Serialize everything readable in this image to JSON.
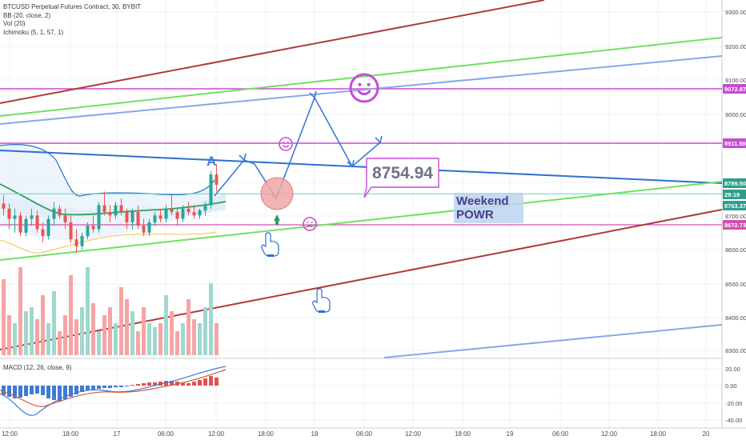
{
  "legend": {
    "title": "BTCUSD Perpetual Futures Contract, 30, BYBIT",
    "bb": "BB (20, close, 2)",
    "vol": "Vol (20)",
    "ichimoku": "Ichimoku (5, 1, 57, 1)",
    "macd": "MACD (12, 26, close, 9)"
  },
  "price_axis": {
    "ticks": [
      "9300.00",
      "9200.00",
      "9100.00",
      "9000.00",
      "8700.00",
      "8600.00",
      "8500.00",
      "8400.00",
      "8300.00"
    ],
    "tags": [
      {
        "label": "9072.87",
        "color": "#c74bd6"
      },
      {
        "label": "8911.59",
        "color": "#c74bd6"
      },
      {
        "label": "8789.50",
        "color": "#2e9e8a"
      },
      {
        "label": "29:19",
        "color": "#2e9e8a"
      },
      {
        "label": "8763.37",
        "color": "#2e9e8a"
      },
      {
        "label": "8672.73",
        "color": "#d24fb0"
      }
    ]
  },
  "macd_axis": {
    "ticks": [
      "20.00",
      "0.00",
      "-20.00",
      "-40.00"
    ]
  },
  "time_axis": {
    "labels": [
      "12:00",
      "18:00",
      "17",
      "06:00",
      "12:00",
      "18:00",
      "18",
      "06:00",
      "12:00",
      "18:00",
      "19",
      "06:00",
      "12:00",
      "18:00",
      "20"
    ]
  },
  "annotations": {
    "price_callout": "8754.94",
    "letter_a": "A",
    "weekend_line1": "Weekend",
    "weekend_line2": "POWR",
    "smile_icon": "smiley-face",
    "frown_icon": "frowning-face",
    "hand_icon": "pointing-hand"
  },
  "colors": {
    "purple": "#c74bd6",
    "teal": "#2e9e8a",
    "bull": "#26a69a",
    "bear": "#ef5350",
    "trend_blue": "#2e6fd0"
  },
  "chart_data": {
    "type": "candlestick",
    "symbol": "BTCUSD Perpetual Futures Contract",
    "interval": "30",
    "exchange": "BYBIT",
    "horizontal_levels": [
      9072.87,
      8911.59,
      8763.37,
      8672.73
    ],
    "last_price": 8789.5,
    "callout_price": 8754.94,
    "ohlc": [
      [
        8735,
        8760,
        8700,
        8720
      ],
      [
        8720,
        8735,
        8660,
        8690
      ],
      [
        8690,
        8720,
        8650,
        8700
      ],
      [
        8700,
        8710,
        8640,
        8650
      ],
      [
        8650,
        8700,
        8640,
        8690
      ],
      [
        8690,
        8720,
        8670,
        8700
      ],
      [
        8700,
        8715,
        8650,
        8660
      ],
      [
        8660,
        8680,
        8620,
        8640
      ],
      [
        8640,
        8700,
        8630,
        8690
      ],
      [
        8690,
        8740,
        8670,
        8720
      ],
      [
        8720,
        8730,
        8690,
        8700
      ],
      [
        8700,
        8720,
        8660,
        8680
      ],
      [
        8680,
        8700,
        8620,
        8630
      ],
      [
        8630,
        8660,
        8590,
        8610
      ],
      [
        8610,
        8650,
        8600,
        8640
      ],
      [
        8640,
        8680,
        8630,
        8670
      ],
      [
        8670,
        8700,
        8650,
        8660
      ],
      [
        8660,
        8740,
        8650,
        8730
      ],
      [
        8730,
        8770,
        8700,
        8710
      ],
      [
        8710,
        8730,
        8680,
        8700
      ],
      [
        8700,
        8740,
        8690,
        8730
      ],
      [
        8730,
        8750,
        8700,
        8710
      ],
      [
        8710,
        8720,
        8660,
        8680
      ],
      [
        8680,
        8720,
        8660,
        8710
      ],
      [
        8710,
        8730,
        8660,
        8670
      ],
      [
        8670,
        8690,
        8640,
        8650
      ],
      [
        8650,
        8690,
        8640,
        8680
      ],
      [
        8680,
        8710,
        8670,
        8700
      ],
      [
        8700,
        8720,
        8680,
        8690
      ],
      [
        8690,
        8730,
        8680,
        8720
      ],
      [
        8720,
        8760,
        8700,
        8710
      ],
      [
        8710,
        8720,
        8670,
        8690
      ],
      [
        8690,
        8730,
        8680,
        8720
      ],
      [
        8720,
        8740,
        8700,
        8710
      ],
      [
        8710,
        8730,
        8690,
        8700
      ],
      [
        8700,
        8720,
        8690,
        8715
      ],
      [
        8715,
        8740,
        8700,
        8730
      ],
      [
        8730,
        8830,
        8720,
        8820
      ],
      [
        8820,
        8850,
        8770,
        8790
      ]
    ]
  }
}
